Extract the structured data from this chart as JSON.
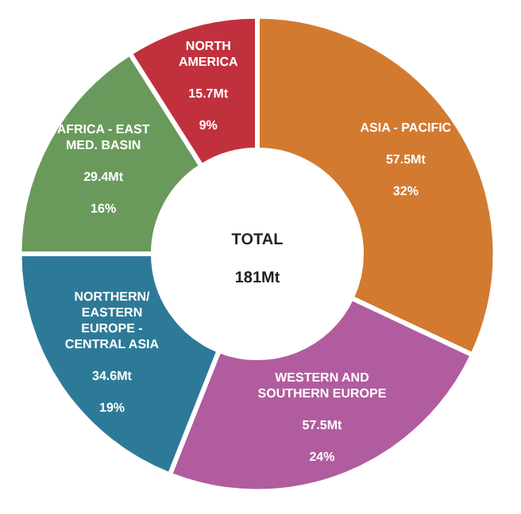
{
  "chart_data": {
    "type": "donut",
    "title": "TOTAL",
    "annotations": [
      "181Mt"
    ],
    "categories": [
      "ASIA - PACIFIC",
      "WESTERN AND\nSOUTHERN EUROPE",
      "NORTHERN/\nEASTERN\nEUROPE -\nCENTRAL ASIA",
      "AFRICA - EAST\nMED. BASIN",
      "NORTH\nAMERICA"
    ],
    "values": [
      32,
      24,
      19,
      16,
      9
    ],
    "value_labels": [
      "57.5Mt\n\n32%",
      "57.5Mt\n\n24%",
      "34.6Mt\n\n19%",
      "29.4Mt\n\n16%",
      "15.7Mt\n\n9%"
    ],
    "colors": [
      "#d27a30",
      "#b15c9f",
      "#2d7a98",
      "#6a9a5b",
      "#c1313d"
    ],
    "legend": false
  }
}
